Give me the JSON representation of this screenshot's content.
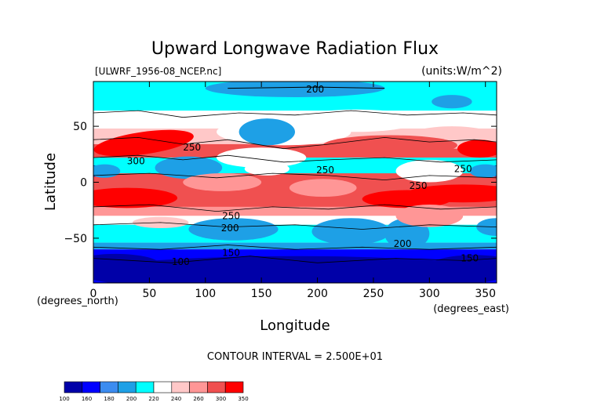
{
  "chart_data": {
    "type": "heatmap",
    "title": "Upward Longwave Radiation Flux",
    "file_label": "[ULWRF_1956-08_NCEP.nc]",
    "units_label": "(units:W/m^2)",
    "xlabel": "Longitude",
    "ylabel": "Latitude",
    "x_unit_note": "(degrees_east)",
    "y_unit_note": "(degrees_north)",
    "xlim": [
      0,
      360
    ],
    "ylim": [
      -90,
      90
    ],
    "x_ticks": [
      0,
      50,
      100,
      150,
      200,
      250,
      300,
      350
    ],
    "y_ticks": [
      -50,
      0,
      50
    ],
    "contour_interval_text": "CONTOUR INTERVAL = 2.500E+01",
    "colorbar": {
      "boundaries": [
        "100",
        "160",
        "180",
        "200",
        "220",
        "240",
        "260",
        "300",
        "350"
      ],
      "colors": [
        "#0000a8",
        "#0000ff",
        "#3c8cf0",
        "#1ea0e6",
        "#00ffff",
        "#ffffff",
        "#ffc8c8",
        "#ff9696",
        "#f05050",
        "#ff0000"
      ]
    },
    "contour_labels": [
      {
        "text": "200",
        "lon": 198,
        "lat": 83
      },
      {
        "text": "250",
        "lon": 88,
        "lat": 31
      },
      {
        "text": "300",
        "lon": 38,
        "lat": 19
      },
      {
        "text": "250",
        "lon": 207,
        "lat": 11
      },
      {
        "text": "250",
        "lon": 330,
        "lat": 12
      },
      {
        "text": "250",
        "lon": 290,
        "lat": -3
      },
      {
        "text": "250",
        "lon": 123,
        "lat": -30
      },
      {
        "text": "200",
        "lon": 122,
        "lat": -41
      },
      {
        "text": "200",
        "lon": 276,
        "lat": -55
      },
      {
        "text": "150",
        "lon": 123,
        "lat": -63
      },
      {
        "text": "100",
        "lon": 78,
        "lat": -71
      },
      {
        "text": "150",
        "lon": 336,
        "lat": -68
      }
    ]
  }
}
